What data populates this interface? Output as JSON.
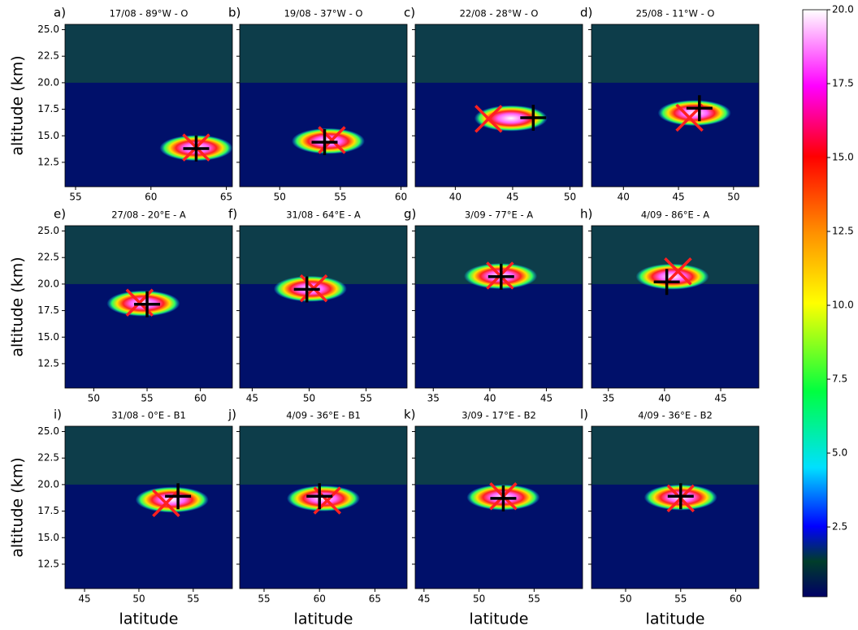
{
  "chart_data": [
    {
      "type": "heatmap",
      "label": "a)",
      "title": "17/08 - 89°W - O",
      "y_label": "altitude (km)",
      "xlim": [
        54.3,
        65.4
      ],
      "xticks": [
        55,
        60,
        65
      ],
      "ylim": [
        10.2,
        25.5
      ],
      "yticks": [
        12.5,
        {
          "value": 15,
          "label": "15.0"
        },
        17.5,
        {
          "value": 20,
          "label": "20.0"
        },
        22.5,
        {
          "value": 25,
          "label": "25.0"
        }
      ],
      "points": [
        {
          "marker": "x",
          "color": "#ff2020",
          "x": 63.0,
          "y": 13.9
        },
        {
          "marker": "+",
          "color": "#000000",
          "x": 63.0,
          "y": 13.8
        }
      ]
    },
    {
      "type": "heatmap",
      "label": "b)",
      "title": "19/08 - 37°W - O",
      "xlim": [
        46.7,
        60.5
      ],
      "xticks": [
        50,
        55,
        60
      ],
      "ylim": [
        10.2,
        25.5
      ],
      "yticks": [
        12.5,
        {
          "value": 15,
          "label": "15.0"
        },
        17.5,
        {
          "value": 20,
          "label": "20.0"
        },
        22.5,
        {
          "value": 25,
          "label": "25.0"
        }
      ],
      "points": [
        {
          "marker": "x",
          "color": "#ff2020",
          "x": 54.3,
          "y": 14.6
        },
        {
          "marker": "+",
          "color": "#000000",
          "x": 53.7,
          "y": 14.4
        }
      ]
    },
    {
      "type": "heatmap",
      "label": "c)",
      "title": "22/08 - 28°W - O",
      "xlim": [
        36.5,
        51.1
      ],
      "xticks": [
        40,
        45,
        50
      ],
      "ylim": [
        10.2,
        25.5
      ],
      "yticks": [
        12.5,
        {
          "value": 15,
          "label": "15.0"
        },
        17.5,
        {
          "value": 20,
          "label": "20.0"
        },
        22.5,
        {
          "value": 25,
          "label": "25.0"
        }
      ],
      "points": [
        {
          "marker": "x",
          "color": "#ff2020",
          "x": 42.9,
          "y": 16.6
        },
        {
          "marker": "+",
          "color": "#000000",
          "x": 46.8,
          "y": 16.7
        }
      ]
    },
    {
      "type": "heatmap",
      "label": "d)",
      "title": "25/08 - 11°W - O",
      "xlim": [
        37.1,
        52.3
      ],
      "xticks": [
        40,
        45,
        50
      ],
      "ylim": [
        10.2,
        25.5
      ],
      "yticks": [
        12.5,
        {
          "value": 15,
          "label": "15.0"
        },
        17.5,
        {
          "value": 20,
          "label": "20.0"
        },
        22.5,
        {
          "value": 25,
          "label": "25.0"
        }
      ],
      "points": [
        {
          "marker": "x",
          "color": "#ff2020",
          "x": 46.0,
          "y": 16.7
        },
        {
          "marker": "+",
          "color": "#000000",
          "x": 46.9,
          "y": 17.6
        }
      ]
    },
    {
      "type": "heatmap",
      "label": "e)",
      "title": "27/08 - 20°E - A",
      "y_label": "altitude (km)",
      "xlim": [
        47.3,
        63.0
      ],
      "xticks": [
        50,
        55,
        60
      ],
      "ylim": [
        10.2,
        25.5
      ],
      "yticks": [
        12.5,
        {
          "value": 15,
          "label": "15.0"
        },
        17.5,
        {
          "value": 20,
          "label": "20.0"
        },
        22.5,
        {
          "value": 25,
          "label": "25.0"
        }
      ],
      "points": [
        {
          "marker": "x",
          "color": "#ff2020",
          "x": 54.3,
          "y": 18.25
        },
        {
          "marker": "+",
          "color": "#000000",
          "x": 55.0,
          "y": 18.1
        }
      ]
    },
    {
      "type": "heatmap",
      "label": "f)",
      "title": "31/08 - 64°E - A",
      "xlim": [
        43.9,
        58.6
      ],
      "xticks": [
        45,
        50,
        55
      ],
      "ylim": [
        10.2,
        25.5
      ],
      "yticks": [
        12.5,
        {
          "value": 15,
          "label": "15.0"
        },
        17.5,
        {
          "value": 20,
          "label": "20.0"
        },
        22.5,
        {
          "value": 25,
          "label": "25.0"
        }
      ],
      "points": [
        {
          "marker": "x",
          "color": "#ff2020",
          "x": 50.4,
          "y": 19.6
        },
        {
          "marker": "+",
          "color": "#000000",
          "x": 49.8,
          "y": 19.5
        }
      ]
    },
    {
      "type": "heatmap",
      "label": "g)",
      "title": "3/09 - 77°E - A",
      "xlim": [
        33.4,
        48.2
      ],
      "xticks": [
        35,
        40,
        45
      ],
      "ylim": [
        10.2,
        25.5
      ],
      "yticks": [
        12.5,
        {
          "value": 15,
          "label": "15.0"
        },
        17.5,
        {
          "value": 20,
          "label": "20.0"
        },
        22.5,
        {
          "value": 25,
          "label": "25.0"
        }
      ],
      "points": [
        {
          "marker": "x",
          "color": "#ff2020",
          "x": 40.9,
          "y": 20.8
        },
        {
          "marker": "+",
          "color": "#000000",
          "x": 41.0,
          "y": 20.7
        }
      ]
    },
    {
      "type": "heatmap",
      "label": "h)",
      "title": "4/09 - 86°E - A",
      "xlim": [
        33.5,
        48.4
      ],
      "xticks": [
        35,
        40,
        45
      ],
      "ylim": [
        10.2,
        25.5
      ],
      "yticks": [
        12.5,
        {
          "value": 15,
          "label": "15.0"
        },
        17.5,
        {
          "value": 20,
          "label": "20.0"
        },
        22.5,
        {
          "value": 25,
          "label": "25.0"
        }
      ],
      "points": [
        {
          "marker": "x",
          "color": "#ff2020",
          "x": 41.2,
          "y": 21.2
        },
        {
          "marker": "+",
          "color": "#000000",
          "x": 40.2,
          "y": 20.2
        }
      ]
    },
    {
      "type": "heatmap",
      "label": "i)",
      "title": "31/08 - 0°E - B1",
      "y_label": "altitude (km)",
      "x_label": "latitude",
      "xlim": [
        43.2,
        58.6
      ],
      "xticks": [
        45,
        50,
        55
      ],
      "ylim": [
        10.2,
        25.5
      ],
      "yticks": [
        12.5,
        {
          "value": 15,
          "label": "15.0"
        },
        17.5,
        {
          "value": 20,
          "label": "20.0"
        },
        22.5,
        {
          "value": 25,
          "label": "25.0"
        }
      ],
      "points": [
        {
          "marker": "x",
          "color": "#ff2020",
          "x": 52.5,
          "y": 18.25
        },
        {
          "marker": "+",
          "color": "#000000",
          "x": 53.6,
          "y": 18.9
        }
      ]
    },
    {
      "type": "heatmap",
      "label": "j)",
      "title": "4/09 - 36°E - B1",
      "x_label": "latitude",
      "xlim": [
        52.8,
        67.9
      ],
      "xticks": [
        55,
        60,
        65
      ],
      "ylim": [
        10.2,
        25.5
      ],
      "yticks": [
        12.5,
        {
          "value": 15,
          "label": "15.0"
        },
        17.5,
        {
          "value": 20,
          "label": "20.0"
        },
        22.5,
        {
          "value": 25,
          "label": "25.0"
        }
      ],
      "points": [
        {
          "marker": "x",
          "color": "#ff2020",
          "x": 60.7,
          "y": 18.5
        },
        {
          "marker": "+",
          "color": "#000000",
          "x": 60.0,
          "y": 18.9
        }
      ]
    },
    {
      "type": "heatmap",
      "label": "k)",
      "title": "3/09 - 17°E - B2",
      "x_label": "latitude",
      "xlim": [
        44.2,
        59.4
      ],
      "xticks": [
        45,
        50,
        55
      ],
      "ylim": [
        10.2,
        25.5
      ],
      "yticks": [
        12.5,
        {
          "value": 15,
          "label": "15.0"
        },
        17.5,
        {
          "value": 20,
          "label": "20.0"
        },
        22.5,
        {
          "value": 25,
          "label": "25.0"
        }
      ],
      "points": [
        {
          "marker": "x",
          "color": "#ff2020",
          "x": 52.2,
          "y": 18.9
        },
        {
          "marker": "+",
          "color": "#000000",
          "x": 52.2,
          "y": 18.7
        }
      ]
    },
    {
      "type": "heatmap",
      "label": "l)",
      "title": "4/09 - 36°E - B2",
      "x_label": "latitude",
      "xlim": [
        46.9,
        62.1
      ],
      "xticks": [
        50,
        55,
        60
      ],
      "ylim": [
        10.2,
        25.5
      ],
      "yticks": [
        12.5,
        {
          "value": 15,
          "label": "15.0"
        },
        17.5,
        {
          "value": 20,
          "label": "20.0"
        },
        22.5,
        {
          "value": 25,
          "label": "25.0"
        }
      ],
      "points": [
        {
          "marker": "x",
          "color": "#ff2020",
          "x": 55.0,
          "y": 18.7
        },
        {
          "marker": "+",
          "color": "#000000",
          "x": 55.0,
          "y": 18.9
        }
      ]
    }
  ],
  "colorbar": {
    "clim": [
      0.14,
      20
    ],
    "ticks": [
      2.5,
      {
        "value": 5,
        "label": "5.0"
      },
      7.5,
      {
        "value": 10,
        "label": "10.0"
      },
      12.5,
      {
        "value": 15,
        "label": "15.0"
      },
      17.5,
      {
        "value": 20,
        "label": "20.0"
      }
    ]
  }
}
